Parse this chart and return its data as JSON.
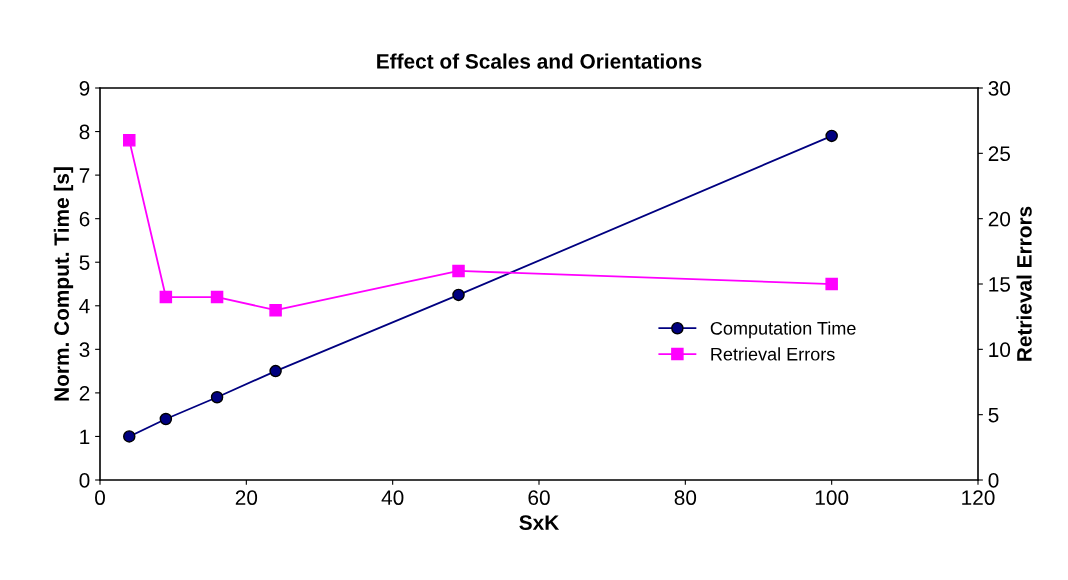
{
  "chart_data": {
    "type": "line",
    "title": "Effect of Scales and Orientations",
    "xlabel": "SxK",
    "ylabel": "Norm. Comput. Time [s]",
    "y2label": "Retrieval Errors",
    "x": [
      4,
      9,
      16,
      24,
      49,
      100
    ],
    "series": [
      {
        "name": "Computation Time",
        "color": "#000080",
        "values": [
          1.0,
          1.4,
          1.9,
          2.5,
          4.25,
          7.9
        ],
        "marker": "circle"
      },
      {
        "name": "Retrieval Errors",
        "color": "#ff00ff",
        "values": [
          26,
          14,
          14,
          13,
          16,
          15
        ],
        "axis": "y2",
        "marker": "square"
      }
    ],
    "xlim": [
      0,
      120
    ],
    "xticks": [
      0,
      20,
      40,
      60,
      80,
      100,
      120
    ],
    "ylim": [
      0,
      9
    ],
    "yticks": [
      0,
      1,
      2,
      3,
      4,
      5,
      6,
      7,
      8,
      9
    ],
    "y2lim": [
      0,
      30
    ],
    "y2ticks": [
      0,
      5,
      10,
      15,
      20,
      25,
      30
    ],
    "grid": false,
    "legend": "right",
    "line_style": "solid"
  }
}
